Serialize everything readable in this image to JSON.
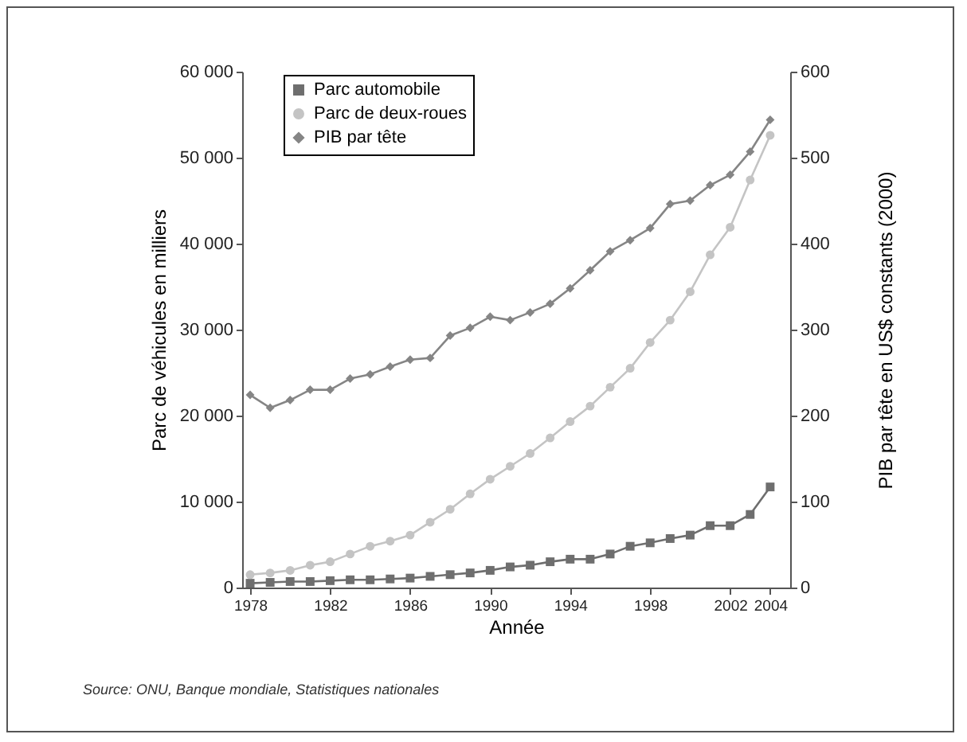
{
  "chart_data": {
    "type": "line",
    "xlabel": "Année",
    "ylabel": "Parc de véhicules en milliers",
    "y2label": "PIB par tête en US$ constants (2000)",
    "x": [
      1978,
      1979,
      1980,
      1981,
      1982,
      1983,
      1984,
      1985,
      1986,
      1987,
      1988,
      1989,
      1990,
      1991,
      1992,
      1993,
      1994,
      1995,
      1996,
      1997,
      1998,
      1999,
      2000,
      2001,
      2002,
      2003,
      2004
    ],
    "series": [
      {
        "name": "Parc automobile",
        "color": "#6e6e6e",
        "marker": "square",
        "values": [
          500,
          600,
          700,
          700,
          800,
          900,
          900,
          1000,
          1100,
          1300,
          1500,
          1700,
          2000,
          2400,
          2600,
          3000,
          3300,
          3300,
          3900,
          4800,
          5200,
          5700,
          6100,
          7200,
          7200,
          8500,
          11700
        ]
      },
      {
        "name": "Parc de deux-roues",
        "color": "#c4c4c4",
        "marker": "circle",
        "values": [
          1500,
          1700,
          2000,
          2600,
          3000,
          3900,
          4800,
          5400,
          6100,
          7600,
          9100,
          10900,
          12600,
          14100,
          15600,
          17400,
          19300,
          21100,
          23300,
          25500,
          28500,
          31100,
          34400,
          38700,
          41900,
          47400,
          52600
        ]
      },
      {
        "name": "PIB par tête",
        "color": "#858585",
        "marker": "diamond",
        "axis": "y2",
        "values": [
          224,
          209,
          218,
          230,
          230,
          243,
          248,
          257,
          265,
          267,
          293,
          302,
          315,
          311,
          320,
          330,
          348,
          369,
          391,
          404,
          418,
          446,
          450,
          468,
          480,
          507,
          544
        ]
      }
    ],
    "xlim": [
      1977.6,
      2005
    ],
    "xticks": [
      1978,
      1982,
      1986,
      1990,
      1994,
      1998,
      2002,
      2004
    ],
    "ylim": [
      0,
      60000
    ],
    "yticks": [
      0,
      {
        "value": 10000,
        "label": "10 000"
      },
      {
        "value": 20000,
        "label": "20 000"
      },
      {
        "value": 30000,
        "label": "30 000"
      },
      {
        "value": 40000,
        "label": "40 000"
      },
      {
        "value": 50000,
        "label": "50 000"
      },
      {
        "value": 60000,
        "label": "60 000"
      }
    ],
    "y2lim": [
      0,
      600
    ],
    "y2ticks": [
      0,
      100,
      200,
      300,
      400,
      500,
      600
    ],
    "legend": "top left",
    "grid": false,
    "line_style": "solid",
    "annotations": [
      "Source: ONU, Banque mondiale, Statistiques nationales"
    ]
  }
}
